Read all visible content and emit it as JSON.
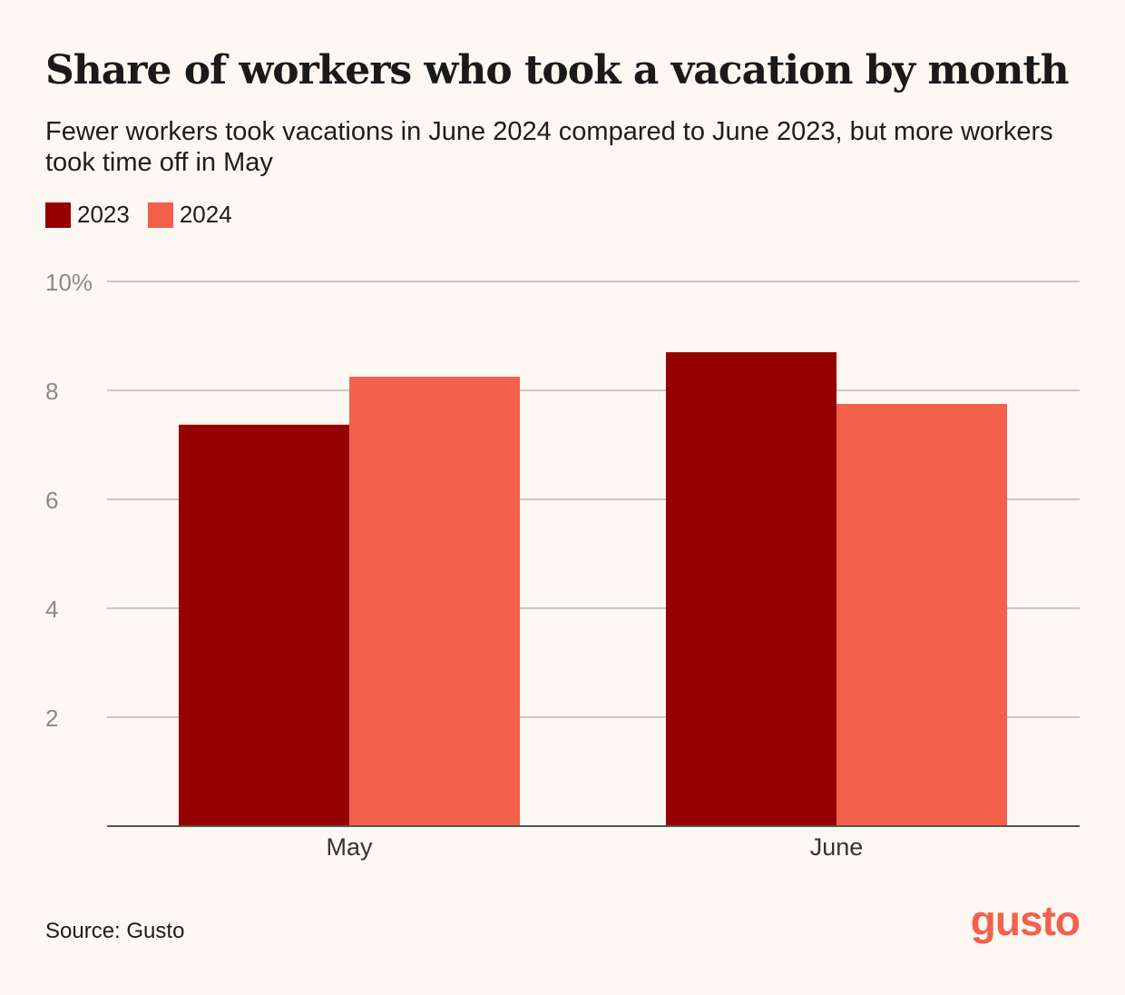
{
  "title": "Share of workers who took a vacation by month",
  "subtitle": "Fewer workers took vacations in June 2024 compared to June 2023, but more workers took time off in May",
  "source": "Source: Gusto",
  "logo_text": "gusto",
  "colors": {
    "background": "#FDF8F1",
    "series_2023": "#950000",
    "series_2024": "#F3604C",
    "gridline": "#b8b8b8",
    "axis": "#555555",
    "tick_label": "#8a8a8a",
    "logo": "#F3604C"
  },
  "chart_data": {
    "type": "bar",
    "categories": [
      "May",
      "June"
    ],
    "series": [
      {
        "name": "2023",
        "values": [
          7.37,
          8.7
        ]
      },
      {
        "name": "2024",
        "values": [
          8.25,
          7.75
        ]
      }
    ],
    "ylim": [
      0,
      10
    ],
    "yticks": [
      2,
      4,
      6,
      8,
      10
    ],
    "ytick_labels": [
      "2",
      "4",
      "6",
      "8",
      "10%"
    ],
    "grid": true,
    "legend": "top-left"
  }
}
